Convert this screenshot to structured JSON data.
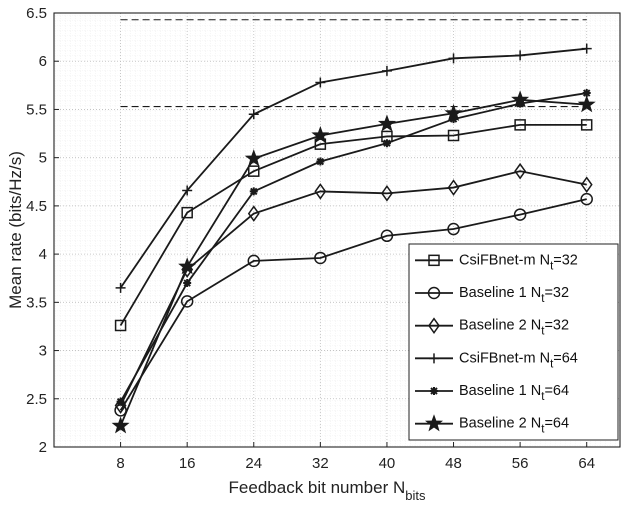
{
  "chart_data": {
    "type": "line",
    "xlabel_main": "Feedback bit number N",
    "xlabel_sub": "bits",
    "ylabel": "Mean rate (bits/Hz/s)",
    "x": [
      8,
      16,
      24,
      32,
      40,
      48,
      56,
      64
    ],
    "xlim": [
      0,
      68
    ],
    "ylim": [
      2,
      6.5
    ],
    "xticks": [
      "8",
      "16",
      "24",
      "32",
      "40",
      "48",
      "56",
      "64"
    ],
    "yticks": [
      "2",
      "2.5",
      "3",
      "3.5",
      "4",
      "4.5",
      "5",
      "5.5",
      "6",
      "6.5"
    ],
    "grid": true,
    "minor_grid": true,
    "legend_position": "bottom-right",
    "reference_lines": [
      6.43,
      5.53
    ],
    "series": [
      {
        "name": "CsiFBnet-m",
        "sub": "t",
        "suffix": "=32",
        "marker": "square",
        "values": [
          3.26,
          4.43,
          4.86,
          5.14,
          5.22,
          5.23,
          5.34,
          5.34
        ]
      },
      {
        "name": "Baseline 1",
        "sub": "t",
        "suffix": "=32",
        "marker": "circle",
        "values": [
          2.38,
          3.51,
          3.93,
          3.96,
          4.19,
          4.26,
          4.41,
          4.57
        ]
      },
      {
        "name": "Baseline 2",
        "sub": "t",
        "suffix": "=32",
        "marker": "diamond",
        "values": [
          2.43,
          3.84,
          4.42,
          4.65,
          4.63,
          4.69,
          4.86,
          4.72
        ]
      },
      {
        "name": "CsiFBnet-m",
        "sub": "t",
        "suffix": "=64",
        "marker": "plus",
        "values": [
          3.65,
          4.66,
          5.45,
          5.78,
          5.9,
          6.03,
          6.06,
          6.13
        ]
      },
      {
        "name": "Baseline 1",
        "sub": "t",
        "suffix": "=64",
        "marker": "asterisk",
        "values": [
          2.47,
          3.7,
          4.65,
          4.96,
          5.15,
          5.4,
          5.56,
          5.67
        ]
      },
      {
        "name": "Baseline 2",
        "sub": "t",
        "suffix": "=64",
        "marker": "star",
        "values": [
          2.22,
          3.87,
          4.99,
          5.23,
          5.35,
          5.46,
          5.6,
          5.55
        ]
      }
    ],
    "legend_n": "N"
  },
  "colors": {
    "line": "#1a1a1a",
    "grid": "#d0d0d0",
    "minor_grid": "#e6e6e6",
    "background": "#ffffff"
  }
}
